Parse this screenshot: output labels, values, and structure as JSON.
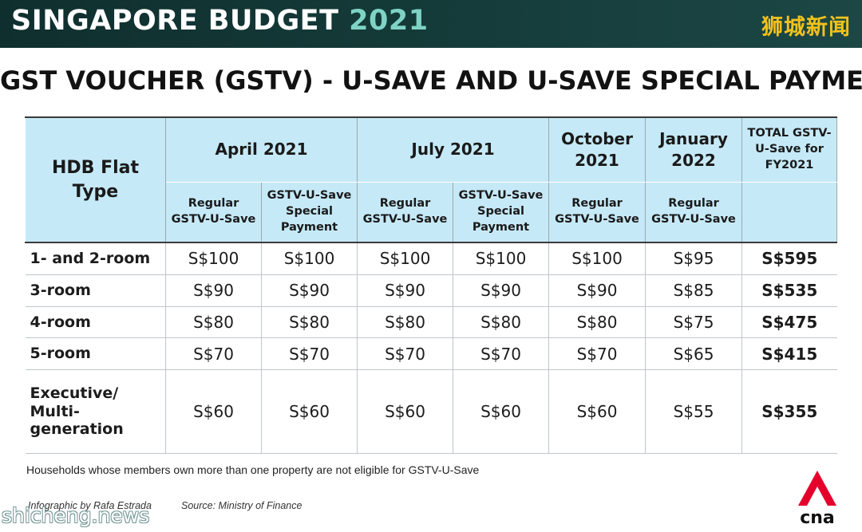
{
  "header": {
    "brand": "SINGAPORE BUDGET",
    "year": "2021",
    "cn_label": "狮城新闻"
  },
  "title": "GST VOUCHER (GSTV) - U-SAVE AND U-SAVE SPECIAL PAYMENT",
  "table": {
    "type_header": "HDB Flat Type",
    "groups": [
      "April 2021",
      "July 2021",
      "October 2021",
      "January 2022"
    ],
    "total_header": "TOTAL GSTV-U-Save for FY2021",
    "sub_regular": "Regular GSTV-U-Save",
    "sub_special": "GSTV-U-Save Special Payment",
    "rows": [
      {
        "type": "1- and 2-room",
        "values": [
          "S$100",
          "S$100",
          "S$100",
          "S$100",
          "S$100",
          "S$95",
          "S$595"
        ]
      },
      {
        "type": "3-room",
        "values": [
          "S$90",
          "S$90",
          "S$90",
          "S$90",
          "S$90",
          "S$85",
          "S$535"
        ]
      },
      {
        "type": "4-room",
        "values": [
          "S$80",
          "S$80",
          "S$80",
          "S$80",
          "S$80",
          "S$75",
          "S$475"
        ]
      },
      {
        "type": "5-room",
        "values": [
          "S$70",
          "S$70",
          "S$70",
          "S$70",
          "S$70",
          "S$65",
          "S$415"
        ]
      },
      {
        "type": "Executive/ Multi-generation",
        "values": [
          "S$60",
          "S$60",
          "S$60",
          "S$60",
          "S$60",
          "S$55",
          "S$355"
        ]
      }
    ]
  },
  "note": "Households whose members own more than one property are not eligible for GSTV-U-Save",
  "credits": {
    "infographic": "Infographic by Rafa Estrada",
    "source": "Source: Ministry of Finance"
  },
  "logo": {
    "icon": "cna-logo",
    "text": "cna",
    "accent": "#e4002b"
  },
  "watermark": "shicheng.news",
  "colors": {
    "header_bg": "#123634",
    "year": "#7fd3c5",
    "cn_label": "#f1c21b",
    "table_header": "#c6e9f7"
  }
}
